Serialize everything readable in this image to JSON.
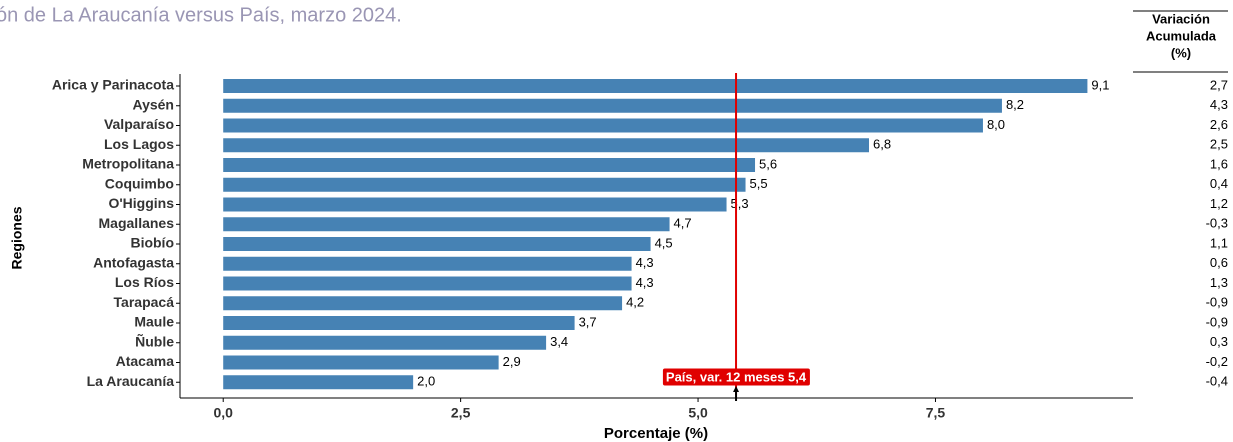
{
  "chart_data": {
    "type": "barh",
    "title": "ón de La Araucanía versus País, marzo 2024.",
    "x_label": "Porcentaje (%)",
    "y_label": "Regiones",
    "categories": [
      "Arica y Parinacota",
      "Aysén",
      "Valparaíso",
      "Los Lagos",
      "Metropolitana",
      "Coquimbo",
      "O'Higgins",
      "Magallanes",
      "Biobío",
      "Antofagasta",
      "Los Ríos",
      "Tarapacá",
      "Maule",
      "Ñuble",
      "Atacama",
      "La Araucanía"
    ],
    "values": [
      9.1,
      8.2,
      8.0,
      6.8,
      5.6,
      5.5,
      5.3,
      4.7,
      4.5,
      4.3,
      4.3,
      4.2,
      3.7,
      3.4,
      2.9,
      2.0
    ],
    "value_labels": [
      "9,1",
      "8,2",
      "8,0",
      "6,8",
      "5,6",
      "5,5",
      "5,3",
      "4,7",
      "4,5",
      "4,3",
      "4,3",
      "4,2",
      "3,7",
      "3,4",
      "2,9",
      "2,0"
    ],
    "color": "#4682b4",
    "xlim": [
      -0.455,
      9.58
    ],
    "xticks": [
      {
        "value": 0,
        "label": "0,0"
      },
      {
        "value": 2.5,
        "label": "2,5"
      },
      {
        "value": 5,
        "label": "5,0"
      },
      {
        "value": 7.5,
        "label": "7,5"
      }
    ],
    "reference_line": {
      "value": 5.4,
      "label": "País, var. 12 meses 5,4",
      "color": "#e00000"
    },
    "side_table": {
      "header": [
        "Variación",
        "Acumulada",
        "(%)"
      ],
      "values": [
        "2,7",
        "4,3",
        "2,6",
        "2,5",
        "1,6",
        "0,4",
        "1,2",
        "-0,3",
        "1,1",
        "0,6",
        "1,3",
        "-0,9",
        "-0,9",
        "0,3",
        "-0,2",
        "-0,4"
      ]
    }
  }
}
